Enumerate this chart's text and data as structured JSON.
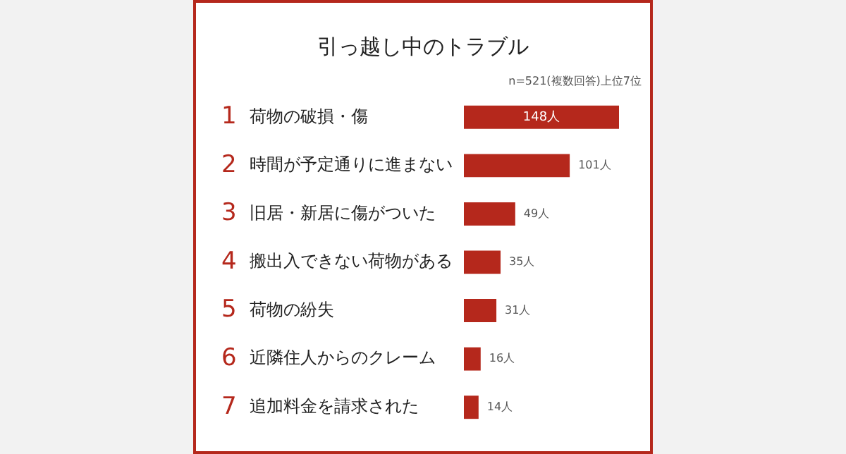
{
  "chart_data": {
    "type": "bar",
    "orientation": "horizontal",
    "title": "引っ越し中のトラブル",
    "subtitle": "n=521(複数回答)上位7位",
    "categories": [
      "1 荷物の破損・傷",
      "2 時間が予定通りに進まない",
      "3 旧居・新居に傷がついた",
      "4 搬出入できない荷物がある",
      "5 荷物の紛失",
      "6 近隣住人からのクレーム",
      "7 追加料金を請求された"
    ],
    "values": [
      148,
      101,
      49,
      35,
      31,
      16,
      14
    ],
    "value_labels": [
      "148人",
      "101人",
      "49人",
      "35人",
      "31人",
      "16人",
      "14人"
    ],
    "color": "#b5281c"
  }
}
